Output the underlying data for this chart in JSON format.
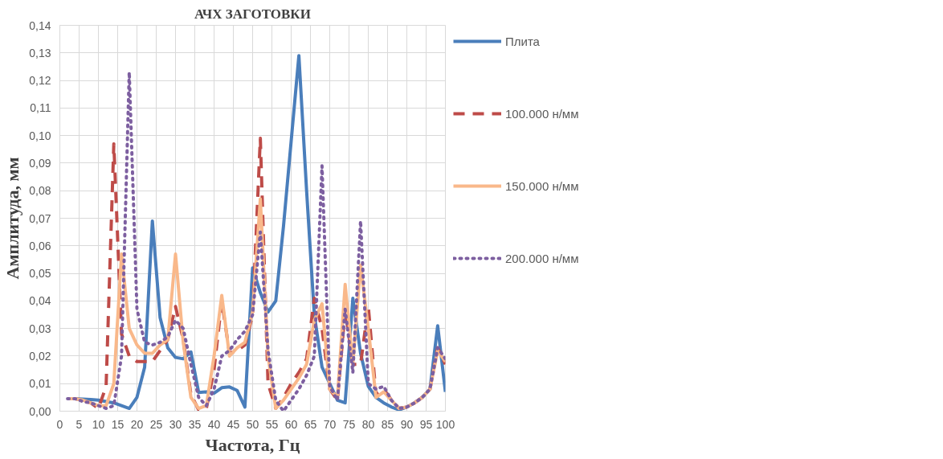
{
  "chart_data": {
    "type": "line",
    "title": "АЧХ ЗАГОТОВКИ",
    "xlabel": "Частота, Гц",
    "ylabel": "Амплитуда, мм",
    "x": [
      2,
      4,
      6,
      8,
      10,
      12,
      14,
      16,
      18,
      20,
      22,
      24,
      26,
      28,
      30,
      32,
      34,
      36,
      38,
      40,
      42,
      44,
      46,
      48,
      50,
      52,
      54,
      56,
      58,
      60,
      62,
      64,
      66,
      68,
      70,
      72,
      74,
      76,
      78,
      80,
      82,
      84,
      86,
      88,
      90,
      92,
      94,
      96,
      98,
      100
    ],
    "series": [
      {
        "name": "Плита",
        "color": "#4a7ebb",
        "line_style": "solid",
        "values": [
          0.0045,
          0.0045,
          0.0044,
          0.0042,
          0.004,
          0.0035,
          0.003,
          0.002,
          0.001,
          0.005,
          0.016,
          0.069,
          0.034,
          0.023,
          0.0195,
          0.019,
          0.0215,
          0.0068,
          0.007,
          0.0065,
          0.0085,
          0.0088,
          0.0075,
          0.0015,
          0.052,
          0.043,
          0.036,
          0.04,
          0.067,
          0.098,
          0.129,
          0.08,
          0.035,
          0.016,
          0.01,
          0.004,
          0.003,
          0.041,
          0.021,
          0.009,
          0.005,
          0.003,
          0.0015,
          0.0005,
          0.0015,
          0.003,
          0.005,
          0.008,
          0.031,
          0.007
        ]
      },
      {
        "name": "100.000 н/мм",
        "color": "#be4b48",
        "line_style": "dashed",
        "values": [
          0.0045,
          0.0045,
          0.004,
          0.003,
          0.001,
          0.009,
          0.097,
          0.028,
          0.02,
          0.018,
          0.018,
          0.018,
          0.022,
          0.026,
          0.038,
          0.026,
          0.006,
          0.0005,
          0.001,
          0.015,
          0.04,
          0.021,
          0.022,
          0.024,
          0.035,
          0.099,
          0.01,
          0.001,
          0.005,
          0.01,
          0.014,
          0.019,
          0.041,
          0.03,
          0.008,
          0.004,
          0.037,
          0.017,
          0.017,
          0.038,
          0.006,
          0.008,
          0.004,
          0.001,
          0.0015,
          0.003,
          0.005,
          0.008,
          0.023,
          0.017
        ]
      },
      {
        "name": "150.000 н/мм",
        "color": "#f9b88a",
        "line_style": "solid",
        "values": [
          0.0045,
          0.0045,
          0.004,
          0.003,
          0.002,
          0.002,
          0.01,
          0.057,
          0.03,
          0.024,
          0.021,
          0.021,
          0.024,
          0.026,
          0.057,
          0.025,
          0.005,
          0.001,
          0.002,
          0.02,
          0.042,
          0.02,
          0.023,
          0.025,
          0.036,
          0.077,
          0.02,
          0.001,
          0.004,
          0.008,
          0.012,
          0.017,
          0.033,
          0.039,
          0.008,
          0.005,
          0.046,
          0.017,
          0.053,
          0.03,
          0.005,
          0.007,
          0.004,
          0.001,
          0.0015,
          0.003,
          0.005,
          0.008,
          0.022,
          0.018
        ]
      },
      {
        "name": "200.000 н/мм",
        "color": "#7d5fa0",
        "line_style": "dotted",
        "values": [
          0.0045,
          0.0045,
          0.0035,
          0.003,
          0.002,
          0.001,
          0.002,
          0.02,
          0.123,
          0.037,
          0.025,
          0.024,
          0.025,
          0.027,
          0.033,
          0.03,
          0.017,
          0.005,
          0.002,
          0.008,
          0.02,
          0.022,
          0.026,
          0.029,
          0.035,
          0.065,
          0.022,
          0.004,
          0.0,
          0.004,
          0.008,
          0.013,
          0.02,
          0.089,
          0.009,
          0.004,
          0.037,
          0.014,
          0.069,
          0.01,
          0.008,
          0.009,
          0.004,
          0.001,
          0.0015,
          0.003,
          0.005,
          0.008,
          0.023,
          0.019
        ]
      }
    ],
    "xlim": [
      0,
      100
    ],
    "xticks": [
      0,
      5,
      10,
      15,
      20,
      25,
      30,
      35,
      40,
      45,
      50,
      55,
      60,
      65,
      70,
      75,
      80,
      85,
      90,
      95,
      100
    ],
    "ylim": [
      0,
      0.14
    ],
    "yticks": [
      {
        "value": 0,
        "label": "0,00"
      },
      {
        "value": 0.01,
        "label": "0,01"
      },
      {
        "value": 0.02,
        "label": "0,02"
      },
      {
        "value": 0.03,
        "label": "0,03"
      },
      {
        "value": 0.04,
        "label": "0,04"
      },
      {
        "value": 0.05,
        "label": "0,05"
      },
      {
        "value": 0.06,
        "label": "0,06"
      },
      {
        "value": 0.07,
        "label": "0,07"
      },
      {
        "value": 0.08,
        "label": "0,08"
      },
      {
        "value": 0.09,
        "label": "0,09"
      },
      {
        "value": 0.1,
        "label": "0,10"
      },
      {
        "value": 0.11,
        "label": "0,11"
      },
      {
        "value": 0.12,
        "label": "0,12"
      },
      {
        "value": 0.13,
        "label": "0,13"
      },
      {
        "value": 0.14,
        "label": "0,14"
      }
    ],
    "grid": true,
    "legend": "right"
  }
}
